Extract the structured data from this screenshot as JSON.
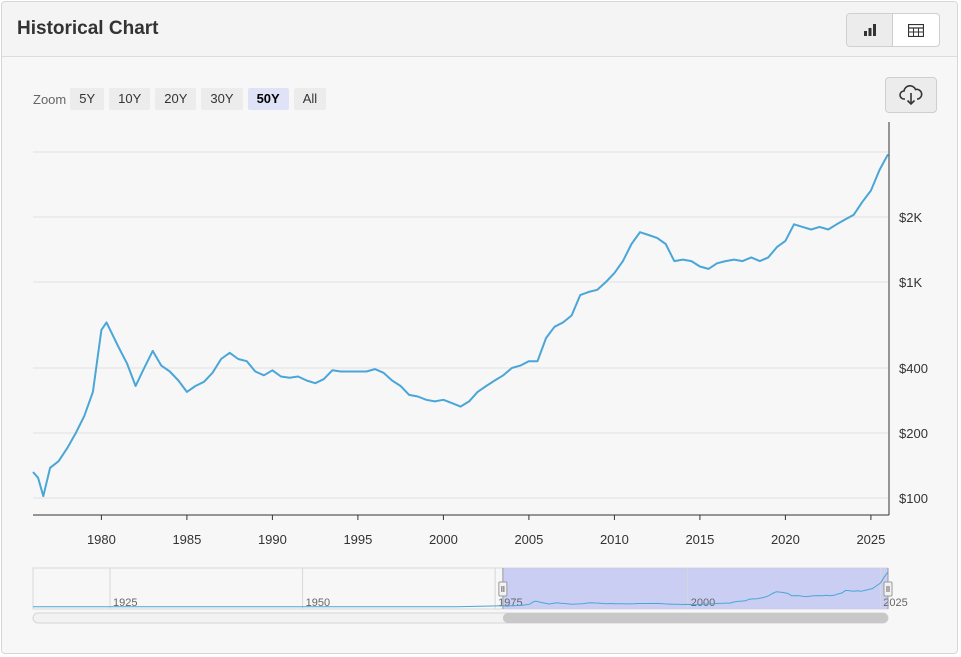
{
  "header": {
    "title": "Historical Chart"
  },
  "view_toggle": {
    "chart_icon": "bar-chart-icon",
    "table_icon": "table-icon"
  },
  "zoom": {
    "label": "Zoom",
    "buttons": [
      {
        "label": "5Y",
        "active": false
      },
      {
        "label": "10Y",
        "active": false
      },
      {
        "label": "20Y",
        "active": false
      },
      {
        "label": "30Y",
        "active": false
      },
      {
        "label": "50Y",
        "active": true
      },
      {
        "label": "All",
        "active": false
      }
    ]
  },
  "download": {
    "icon": "cloud-download-icon"
  },
  "colors": {
    "line": "#4aa6d8",
    "navigator_mask": "#c4c9f2",
    "grid": "#e2e2e2"
  },
  "chart_data": {
    "type": "line",
    "title": "",
    "xlabel": "",
    "ylabel": "",
    "y_scale": "log",
    "x_ticks": [
      "1980",
      "1985",
      "1990",
      "1995",
      "2000",
      "2005",
      "2010",
      "2015",
      "2020",
      "2025"
    ],
    "y_ticks": [
      {
        "value": 100,
        "label": "$100"
      },
      {
        "value": 200,
        "label": "$200"
      },
      {
        "value": 400,
        "label": "$400"
      },
      {
        "value": 1000,
        "label": "$1K"
      },
      {
        "value": 2000,
        "label": "$2K"
      }
    ],
    "xlim": [
      1976,
      2026
    ],
    "ylim": [
      90,
      6000
    ],
    "grid": true,
    "legend": "none",
    "series": [
      {
        "name": "",
        "x": [
          1976.0,
          1976.3,
          1976.6,
          1977.0,
          1977.5,
          1978.0,
          1978.5,
          1979.0,
          1979.5,
          1980.0,
          1980.3,
          1980.6,
          1981.0,
          1981.5,
          1982.0,
          1982.5,
          1983.0,
          1983.5,
          1984.0,
          1984.5,
          1985.0,
          1985.5,
          1986.0,
          1986.5,
          1987.0,
          1987.5,
          1988.0,
          1988.5,
          1989.0,
          1989.5,
          1990.0,
          1990.5,
          1991.0,
          1991.5,
          1992.0,
          1992.5,
          1993.0,
          1993.5,
          1994.0,
          1994.5,
          1995.0,
          1995.5,
          1996.0,
          1996.5,
          1997.0,
          1997.5,
          1998.0,
          1998.5,
          1999.0,
          1999.5,
          2000.0,
          2000.5,
          2001.0,
          2001.5,
          2002.0,
          2002.5,
          2003.0,
          2003.5,
          2004.0,
          2004.5,
          2005.0,
          2005.5,
          2006.0,
          2006.5,
          2007.0,
          2007.5,
          2008.0,
          2008.5,
          2009.0,
          2009.5,
          2010.0,
          2010.5,
          2011.0,
          2011.5,
          2012.0,
          2012.5,
          2013.0,
          2013.5,
          2014.0,
          2014.5,
          2015.0,
          2015.5,
          2016.0,
          2016.5,
          2017.0,
          2017.5,
          2018.0,
          2018.5,
          2019.0,
          2019.5,
          2020.0,
          2020.5,
          2021.0,
          2021.5,
          2022.0,
          2022.5,
          2023.0,
          2023.5,
          2024.0,
          2024.5,
          2025.0,
          2025.5,
          2026.0
        ],
        "y": [
          132,
          124,
          102,
          138,
          148,
          170,
          200,
          240,
          310,
          600,
          650,
          580,
          500,
          420,
          330,
          400,
          480,
          410,
          385,
          350,
          310,
          330,
          345,
          380,
          440,
          470,
          440,
          430,
          385,
          370,
          390,
          365,
          360,
          365,
          350,
          340,
          355,
          390,
          385,
          385,
          385,
          385,
          395,
          380,
          350,
          330,
          300,
          295,
          285,
          280,
          285,
          275,
          265,
          280,
          310,
          330,
          350,
          370,
          400,
          410,
          430,
          430,
          550,
          620,
          650,
          700,
          870,
          900,
          920,
          1000,
          1100,
          1250,
          1500,
          1700,
          1650,
          1600,
          1500,
          1250,
          1270,
          1250,
          1180,
          1150,
          1220,
          1250,
          1270,
          1250,
          1300,
          1250,
          1300,
          1450,
          1550,
          1850,
          1800,
          1750,
          1800,
          1750,
          1850,
          1950,
          2050,
          2350,
          2650,
          3300,
          3900
        ]
      }
    ]
  },
  "navigator": {
    "ticks": [
      "1925",
      "1950",
      "1975",
      "2000",
      "2025"
    ]
  }
}
